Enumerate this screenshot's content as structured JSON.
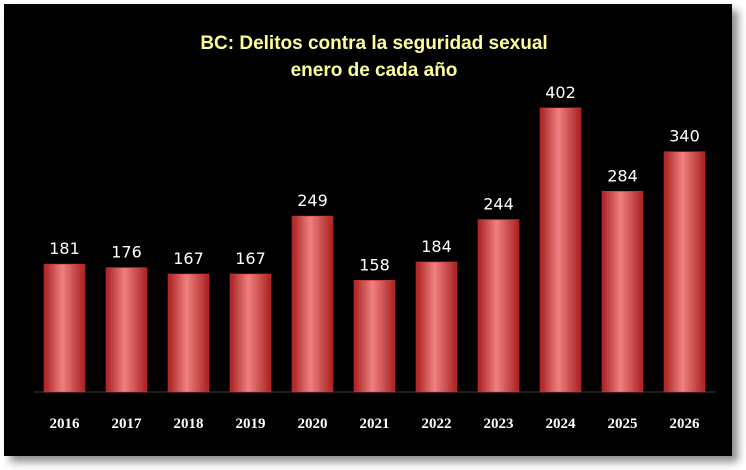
{
  "chart_data": {
    "type": "bar",
    "title": "BC: Delitos contra la seguridad sexual",
    "subtitle": "enero de cada año",
    "xlabel": "",
    "ylabel": "",
    "categories": [
      "2016",
      "2017",
      "2018",
      "2019",
      "2020",
      "2021",
      "2022",
      "2023",
      "2024",
      "2025",
      "2026"
    ],
    "values": [
      181,
      176,
      167,
      167,
      249,
      158,
      184,
      244,
      402,
      284,
      340
    ],
    "ylim": [
      0,
      450
    ],
    "grid": false,
    "legend": "none",
    "colors": {
      "background": "#000000",
      "bar": "#d93a3a",
      "bar_light": "#f08080",
      "bar_dark": "#a82020",
      "title": "#ffff99",
      "labels": "#ffffff"
    }
  }
}
